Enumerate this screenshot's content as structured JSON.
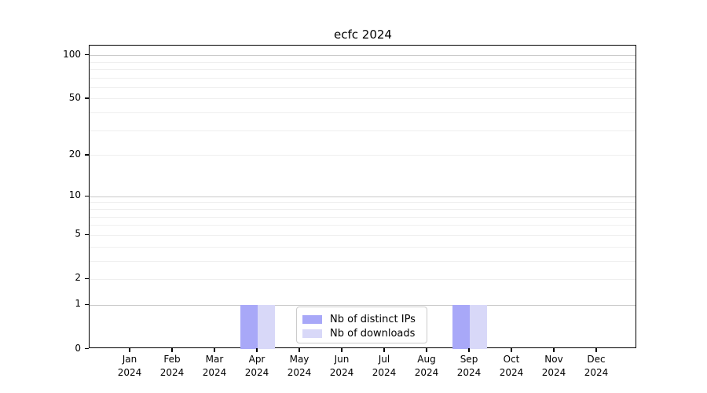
{
  "chart_data": {
    "type": "bar",
    "title": "ecfc 2024",
    "categories": [
      "Jan",
      "Feb",
      "Mar",
      "Apr",
      "May",
      "Jun",
      "Jul",
      "Aug",
      "Sep",
      "Oct",
      "Nov",
      "Dec"
    ],
    "year": "2024",
    "series": [
      {
        "name": "Nb of distinct IPs",
        "color": "#a8a8f8",
        "values": [
          0,
          0,
          0,
          1,
          0,
          0,
          0,
          0,
          1,
          0,
          0,
          0
        ]
      },
      {
        "name": "Nb of downloads",
        "color": "#d8d8f8",
        "values": [
          0,
          0,
          0,
          1,
          0,
          0,
          0,
          0,
          1,
          0,
          0,
          0
        ]
      }
    ],
    "yscale": "log1p",
    "ylim": [
      0,
      130
    ],
    "yticks": [
      0,
      1,
      2,
      5,
      10,
      20,
      50,
      100
    ],
    "gridlines": {
      "major": [
        1,
        10,
        100
      ],
      "minor": [
        2,
        3,
        4,
        5,
        6,
        7,
        8,
        9,
        20,
        30,
        40,
        50,
        60,
        70,
        80,
        90
      ]
    },
    "legend_position": "lower center",
    "colors": {
      "axis": "#000000",
      "major_grid": "#c9c9c9",
      "minor_grid": "#efefef",
      "background": "#ffffff"
    }
  }
}
